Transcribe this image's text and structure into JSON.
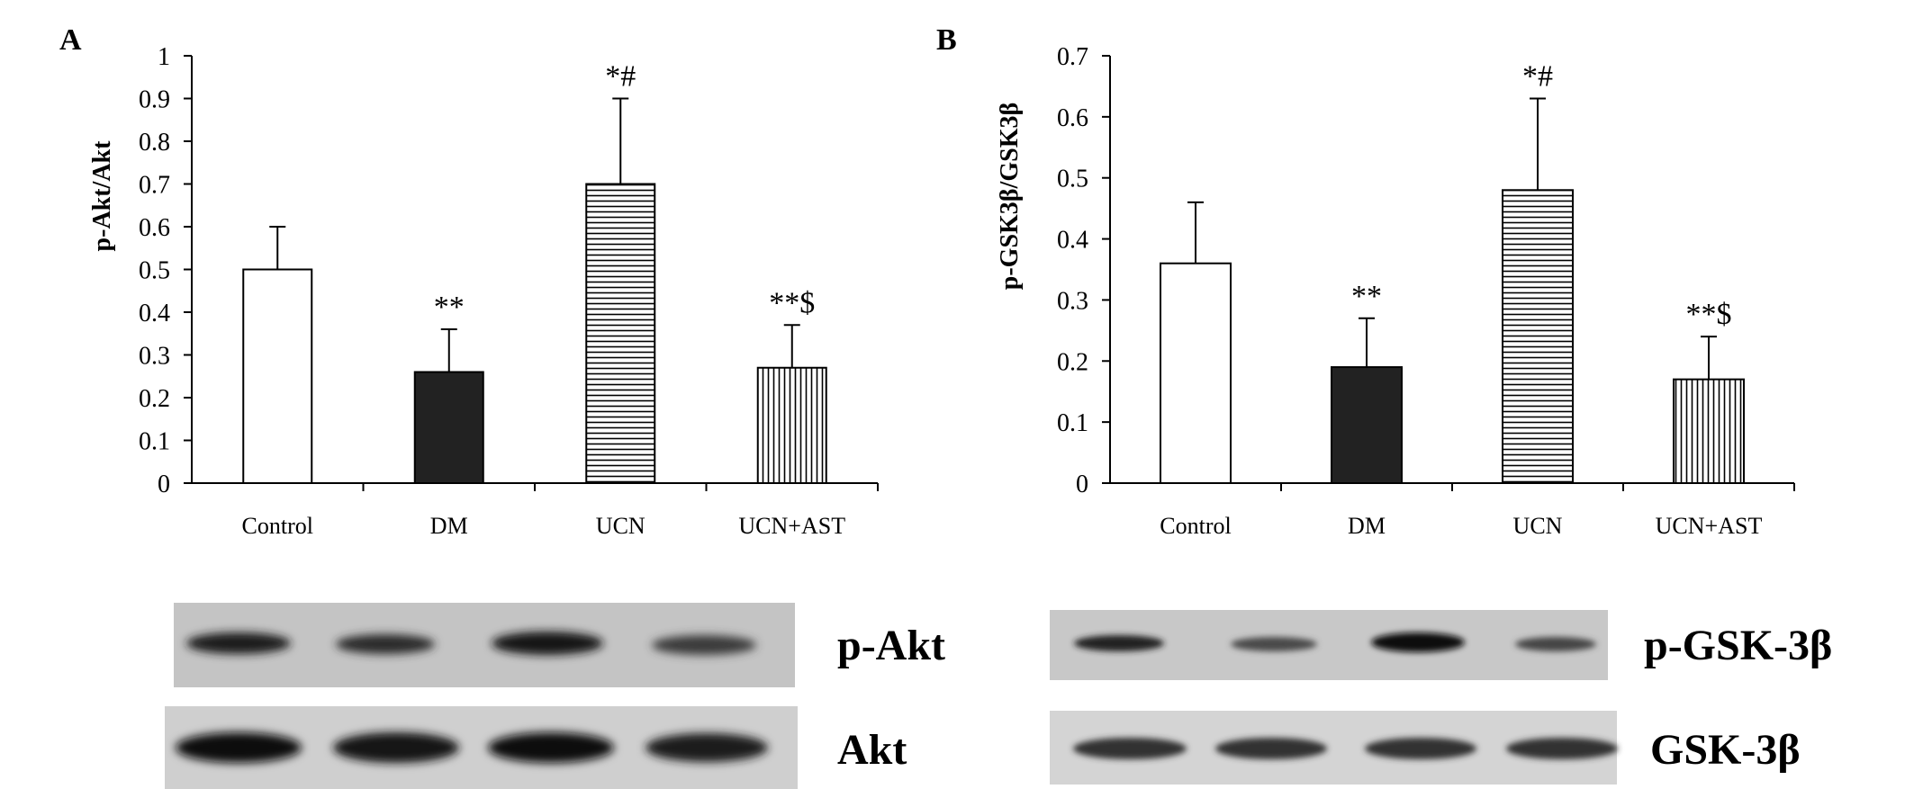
{
  "chart_data": [
    {
      "type": "bar",
      "panel_label": "A",
      "ylabel": "p-Akt/Akt",
      "xlabel": "",
      "categories": [
        "Control",
        "DM",
        "UCN",
        "UCN+AST"
      ],
      "values": [
        0.5,
        0.26,
        0.7,
        0.27
      ],
      "errors": [
        0.1,
        0.1,
        0.2,
        0.1
      ],
      "annotations": [
        "",
        "**",
        "*#",
        "**$"
      ],
      "bar_patterns": [
        "white",
        "black",
        "horizontal-lines",
        "vertical-lines"
      ],
      "ylim": [
        0,
        1
      ],
      "yticks": [
        "0",
        "0.1",
        "0.2",
        "0.3",
        "0.4",
        "0.5",
        "0.6",
        "0.7",
        "0.8",
        "0.9",
        "1"
      ],
      "grid": false
    },
    {
      "type": "bar",
      "panel_label": "B",
      "ylabel": "p-GSK3β/GSK3β",
      "xlabel": "",
      "categories": [
        "Control",
        "DM",
        "UCN",
        "UCN+AST"
      ],
      "values": [
        0.36,
        0.19,
        0.48,
        0.17
      ],
      "errors": [
        0.1,
        0.08,
        0.15,
        0.07
      ],
      "annotations": [
        "",
        "**",
        "*#",
        "**$"
      ],
      "bar_patterns": [
        "white",
        "black",
        "horizontal-lines",
        "vertical-lines"
      ],
      "ylim": [
        0,
        0.7
      ],
      "yticks": [
        "0",
        "0.1",
        "0.2",
        "0.3",
        "0.4",
        "0.5",
        "0.6",
        "0.7"
      ],
      "grid": false
    }
  ],
  "blots": {
    "a": {
      "top_label": "p-Akt",
      "bottom_label": "Akt"
    },
    "b": {
      "top_label": "p-GSK-3β",
      "bottom_label": "GSK-3β"
    }
  },
  "colors": {
    "bar_outline": "#000000",
    "dark_bar": "#222222",
    "blot_background": "#c8c8c8",
    "band": "#1a1a1a"
  }
}
